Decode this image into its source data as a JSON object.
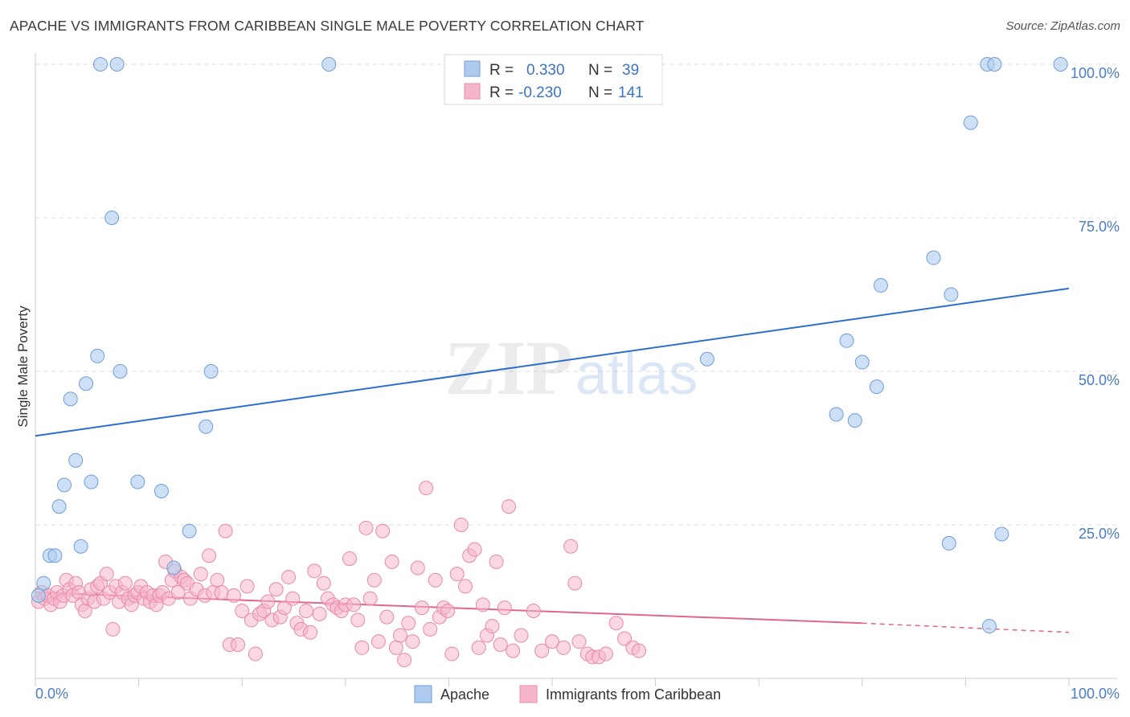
{
  "title": "APACHE VS IMMIGRANTS FROM CARIBBEAN SINGLE MALE POVERTY CORRELATION CHART",
  "source": "Source: ZipAtlas.com",
  "watermark": {
    "zip": "ZIP",
    "atlas": "atlas"
  },
  "colors": {
    "apache_fill": "#aecbef",
    "apache_stroke": "#6f9ed8",
    "apache_line": "#2a6fcc",
    "carib_fill": "#f6b6ca",
    "carib_stroke": "#e889a8",
    "carib_line": "#e0668f",
    "tick_text": "#4a7cc7",
    "grid": "#dddddd"
  },
  "legend": {
    "rows": [
      {
        "r_label": "R =",
        "r_value": "0.330",
        "n_label": "N =",
        "n_value": "39"
      },
      {
        "r_label": "R =",
        "r_value": "-0.230",
        "n_label": "N =",
        "n_value": "141"
      }
    ]
  },
  "chart_data": {
    "type": "scatter",
    "title": "APACHE VS IMMIGRANTS FROM CARIBBEAN SINGLE MALE POVERTY CORRELATION CHART",
    "xlabel": "",
    "ylabel": "Single Male Poverty",
    "xlim": [
      0,
      100
    ],
    "ylim": [
      0,
      100
    ],
    "x_tick_labels": [
      "0.0%",
      "100.0%"
    ],
    "y_tick_labels": [
      "25.0%",
      "50.0%",
      "75.0%",
      "100.0%"
    ],
    "y_ticks": [
      25,
      50,
      75,
      100
    ],
    "grid": true,
    "legend_position": "top-center",
    "series": [
      {
        "name": "Apache",
        "trend": {
          "x": [
            0,
            100
          ],
          "y": [
            39.5,
            63.5
          ]
        },
        "points": [
          [
            6.3,
            100
          ],
          [
            7.9,
            100
          ],
          [
            28.4,
            100
          ],
          [
            92.1,
            100
          ],
          [
            92.8,
            100
          ],
          [
            99.2,
            100
          ],
          [
            90.5,
            90.5
          ],
          [
            7.4,
            75
          ],
          [
            86.9,
            68.5
          ],
          [
            81.8,
            64
          ],
          [
            88.6,
            62.5
          ],
          [
            78.5,
            55
          ],
          [
            80.0,
            51.5
          ],
          [
            65.0,
            52
          ],
          [
            6.0,
            52.5
          ],
          [
            8.2,
            50
          ],
          [
            17.0,
            50
          ],
          [
            4.9,
            48
          ],
          [
            3.4,
            45.5
          ],
          [
            81.4,
            47.5
          ],
          [
            77.5,
            43
          ],
          [
            79.3,
            42
          ],
          [
            16.5,
            41
          ],
          [
            3.9,
            35.5
          ],
          [
            2.8,
            31.5
          ],
          [
            5.4,
            32
          ],
          [
            9.9,
            32
          ],
          [
            12.2,
            30.5
          ],
          [
            2.3,
            28
          ],
          [
            14.9,
            24
          ],
          [
            93.5,
            23.5
          ],
          [
            88.4,
            22
          ],
          [
            4.4,
            21.5
          ],
          [
            1.4,
            20
          ],
          [
            1.9,
            20
          ],
          [
            0.8,
            15.5
          ],
          [
            13.4,
            18
          ],
          [
            0.3,
            13.5
          ],
          [
            92.3,
            8.5
          ]
        ]
      },
      {
        "name": "Immigrants from Caribbean",
        "trend": {
          "x": [
            0,
            80
          ],
          "y": [
            14,
            9
          ],
          "dashed_x": [
            80,
            100
          ],
          "dashed_y": [
            9,
            7.5
          ]
        },
        "points": [
          [
            0.3,
            12.5
          ],
          [
            0.6,
            14
          ],
          [
            0.9,
            13
          ],
          [
            1.2,
            13.5
          ],
          [
            1.5,
            12
          ],
          [
            1.8,
            13
          ],
          [
            2.1,
            14
          ],
          [
            2.4,
            12.5
          ],
          [
            2.7,
            13.5
          ],
          [
            3.0,
            16
          ],
          [
            3.3,
            14.5
          ],
          [
            3.6,
            13.5
          ],
          [
            3.9,
            15.5
          ],
          [
            4.2,
            14
          ],
          [
            4.5,
            12
          ],
          [
            4.8,
            11
          ],
          [
            5.1,
            13
          ],
          [
            5.4,
            14.5
          ],
          [
            5.7,
            12.5
          ],
          [
            6.0,
            15
          ],
          [
            6.3,
            15.5
          ],
          [
            6.6,
            13
          ],
          [
            6.9,
            17
          ],
          [
            7.2,
            14
          ],
          [
            7.5,
            8
          ],
          [
            7.8,
            15
          ],
          [
            8.1,
            12.5
          ],
          [
            8.4,
            14
          ],
          [
            8.7,
            15.5
          ],
          [
            9.0,
            13
          ],
          [
            9.3,
            12
          ],
          [
            9.6,
            13.5
          ],
          [
            9.9,
            14
          ],
          [
            10.2,
            15
          ],
          [
            10.5,
            13
          ],
          [
            10.8,
            14
          ],
          [
            11.1,
            12.5
          ],
          [
            11.4,
            13.5
          ],
          [
            11.7,
            12
          ],
          [
            12.0,
            13.5
          ],
          [
            12.3,
            14
          ],
          [
            12.6,
            19
          ],
          [
            12.9,
            13
          ],
          [
            13.2,
            16
          ],
          [
            13.5,
            17.5
          ],
          [
            13.8,
            14
          ],
          [
            14.1,
            16.5
          ],
          [
            14.4,
            16
          ],
          [
            14.7,
            15.5
          ],
          [
            15.0,
            13
          ],
          [
            15.6,
            14.5
          ],
          [
            16.0,
            17
          ],
          [
            16.4,
            13.5
          ],
          [
            16.8,
            20
          ],
          [
            17.2,
            14
          ],
          [
            17.6,
            16
          ],
          [
            18.0,
            14
          ],
          [
            18.4,
            24
          ],
          [
            18.8,
            5.5
          ],
          [
            19.2,
            13.5
          ],
          [
            19.6,
            5.5
          ],
          [
            20.0,
            11
          ],
          [
            20.5,
            15
          ],
          [
            20.9,
            9.5
          ],
          [
            21.3,
            4
          ],
          [
            21.7,
            10.5
          ],
          [
            22.1,
            11
          ],
          [
            22.5,
            12.5
          ],
          [
            22.9,
            9.5
          ],
          [
            23.3,
            14.5
          ],
          [
            23.7,
            10
          ],
          [
            24.1,
            11.5
          ],
          [
            24.5,
            16.5
          ],
          [
            24.9,
            13
          ],
          [
            25.3,
            9
          ],
          [
            25.7,
            8
          ],
          [
            26.2,
            11
          ],
          [
            26.6,
            7.5
          ],
          [
            27.0,
            17.5
          ],
          [
            27.5,
            10.5
          ],
          [
            27.9,
            15.5
          ],
          [
            28.3,
            13
          ],
          [
            28.8,
            12
          ],
          [
            29.2,
            11.5
          ],
          [
            29.6,
            11
          ],
          [
            30.0,
            12
          ],
          [
            30.4,
            19.5
          ],
          [
            30.8,
            12
          ],
          [
            31.2,
            9.5
          ],
          [
            31.6,
            5
          ],
          [
            32.0,
            24.5
          ],
          [
            32.4,
            13
          ],
          [
            32.8,
            16
          ],
          [
            33.2,
            6
          ],
          [
            33.6,
            24
          ],
          [
            34.0,
            10
          ],
          [
            34.5,
            19
          ],
          [
            34.9,
            5
          ],
          [
            35.3,
            7
          ],
          [
            35.7,
            3
          ],
          [
            36.1,
            9
          ],
          [
            36.5,
            6
          ],
          [
            37.0,
            18
          ],
          [
            37.4,
            11.5
          ],
          [
            37.8,
            31
          ],
          [
            38.2,
            8
          ],
          [
            38.7,
            16
          ],
          [
            39.1,
            10
          ],
          [
            39.5,
            11.5
          ],
          [
            39.9,
            11
          ],
          [
            40.3,
            4
          ],
          [
            40.8,
            17
          ],
          [
            41.2,
            25
          ],
          [
            41.6,
            15
          ],
          [
            42.0,
            20
          ],
          [
            42.5,
            21
          ],
          [
            42.9,
            5
          ],
          [
            43.3,
            12
          ],
          [
            43.7,
            7
          ],
          [
            44.2,
            8.5
          ],
          [
            44.6,
            19
          ],
          [
            45.0,
            5.5
          ],
          [
            45.4,
            11.5
          ],
          [
            45.8,
            28
          ],
          [
            46.2,
            4.5
          ],
          [
            47.0,
            7
          ],
          [
            48.2,
            11
          ],
          [
            49.0,
            4.5
          ],
          [
            50.0,
            6
          ],
          [
            51.1,
            5
          ],
          [
            51.8,
            21.5
          ],
          [
            52.2,
            15.5
          ],
          [
            52.6,
            6
          ],
          [
            53.4,
            4
          ],
          [
            53.9,
            3.5
          ],
          [
            54.5,
            3.5
          ],
          [
            55.2,
            4
          ],
          [
            56.2,
            9
          ],
          [
            57.0,
            6.5
          ],
          [
            57.8,
            5
          ],
          [
            58.4,
            4.5
          ]
        ]
      }
    ]
  },
  "bottom_legend": {
    "apache": "Apache",
    "carib": "Immigrants from Caribbean"
  }
}
